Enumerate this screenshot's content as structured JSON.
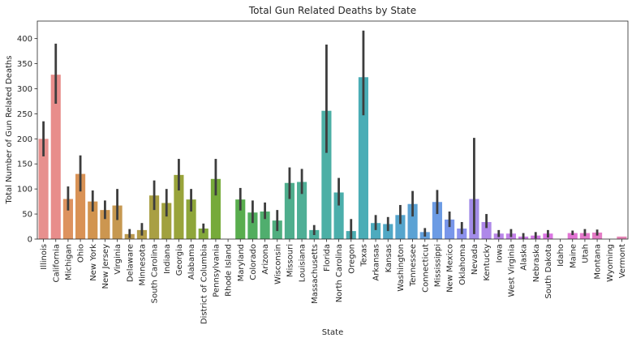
{
  "chart_data": {
    "type": "bar",
    "title": "Total Gun Related Deaths by State",
    "xlabel": "State",
    "ylabel": "Total Number of Gun Related Deaths",
    "ylim": [
      0,
      435
    ],
    "yticks": [
      0,
      50,
      100,
      150,
      200,
      250,
      300,
      350,
      400
    ],
    "grid": false,
    "legend": "none",
    "categories": [
      "Illinois",
      "California",
      "Michigan",
      "Ohio",
      "New York",
      "New Jersey",
      "Virginia",
      "Delaware",
      "Minnesota",
      "South Carolina",
      "Indiana",
      "Georgia",
      "Alabama",
      "District of Columbia",
      "Pennsylvania",
      "Rhode Island",
      "Maryland",
      "Colorado",
      "Arizona",
      "Wisconsin",
      "Missouri",
      "Louisiana",
      "Massachusetts",
      "Florida",
      "North Carolina",
      "Oregon",
      "Texas",
      "Arkansas",
      "Kansas",
      "Washington",
      "Tennessee",
      "Connecticut",
      "Mississippi",
      "New Mexico",
      "Oklahoma",
      "Nevada",
      "Kentucky",
      "Iowa",
      "West Virginia",
      "Alaska",
      "Nebraska",
      "South Dakota",
      "Idaho",
      "Maine",
      "Utah",
      "Montana",
      "Wyoming",
      "Vermont"
    ],
    "values": [
      200,
      328,
      80,
      130,
      75,
      58,
      67,
      10,
      18,
      87,
      72,
      128,
      79,
      21,
      120,
      0,
      79,
      53,
      55,
      37,
      112,
      114,
      18,
      256,
      93,
      16,
      323,
      32,
      30,
      48,
      70,
      14,
      74,
      39,
      21,
      80,
      34,
      11,
      11,
      5,
      7,
      11,
      0,
      12,
      12,
      13,
      0,
      5
    ],
    "error_low": [
      165,
      270,
      57,
      95,
      55,
      40,
      38,
      2,
      7,
      58,
      45,
      97,
      55,
      12,
      87,
      0,
      57,
      32,
      40,
      16,
      80,
      90,
      8,
      172,
      67,
      0,
      247,
      18,
      16,
      30,
      45,
      5,
      50,
      24,
      10,
      10,
      22,
      4,
      4,
      0,
      1,
      3,
      0,
      8,
      6,
      7,
      0,
      5
    ],
    "error_high": [
      235,
      390,
      105,
      167,
      97,
      77,
      100,
      20,
      32,
      117,
      100,
      160,
      100,
      31,
      160,
      0,
      102,
      77,
      73,
      58,
      143,
      140,
      28,
      388,
      122,
      40,
      416,
      48,
      44,
      68,
      96,
      22,
      98,
      55,
      34,
      202,
      50,
      18,
      20,
      12,
      14,
      18,
      0,
      17,
      20,
      19,
      0,
      5
    ],
    "colors": [
      "#e7908e",
      "#e88d8b",
      "#dd925f",
      "#d99255",
      "#d2944f",
      "#cc9650",
      "#c69850",
      "#bd9b4f",
      "#b39d49",
      "#a99f43",
      "#a1a13f",
      "#99a43b",
      "#8ea63a",
      "#83a83a",
      "#76aa3a",
      "#6bab42",
      "#59ad4e",
      "#52ad5e",
      "#50ae6e",
      "#50ae7f",
      "#4fae8d",
      "#4faf96",
      "#4daf9e",
      "#4cafa5",
      "#4baeab",
      "#4badb1",
      "#4aadb6",
      "#4dabbe",
      "#50a8c5",
      "#55a5cd",
      "#5ba2d4",
      "#639fdb",
      "#6c9be4",
      "#7896ea",
      "#8c91ed",
      "#a28ce8",
      "#ae88e9",
      "#b986e8",
      "#c382e8",
      "#cb7ce7",
      "#d378e5",
      "#da75e2",
      "#e072dc",
      "#e275d4",
      "#e479cc",
      "#e47cc5",
      "#e57fbe",
      "#e586b6"
    ]
  }
}
